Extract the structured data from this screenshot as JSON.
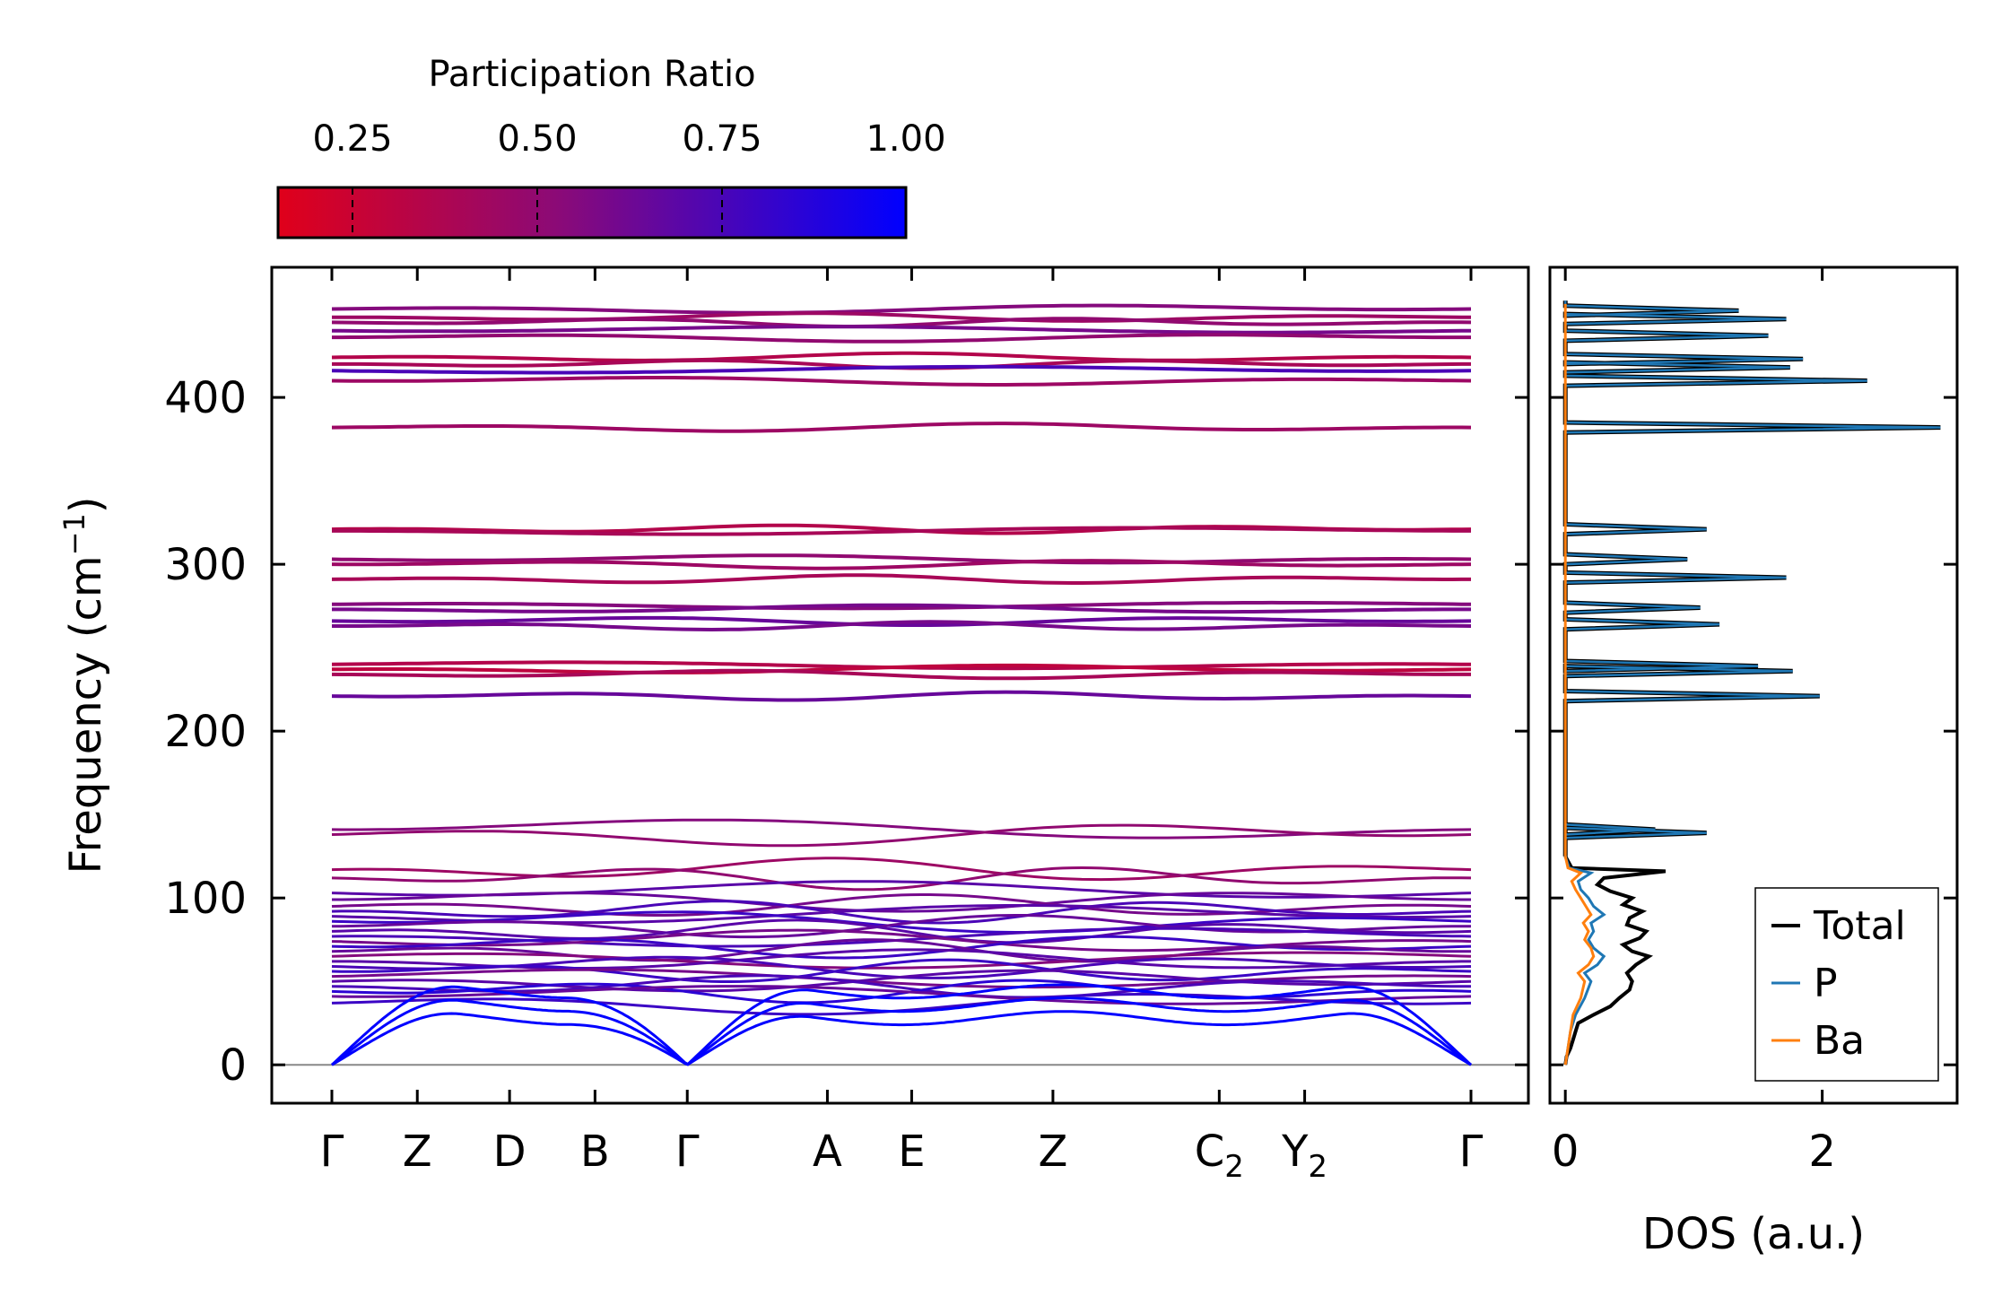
{
  "chart_data": [
    {
      "type": "line",
      "panel": "phonon-band-structure",
      "ylabel_main": "Frequency (cm",
      "ylabel_sup": "−1",
      "ylabel_end": ")",
      "ylim": [
        -23,
        478
      ],
      "yticks": [
        0,
        100,
        200,
        300,
        400
      ],
      "kpoints": [
        {
          "label": "Γ",
          "sub": "",
          "pos": 0.0
        },
        {
          "label": "Z",
          "sub": "",
          "pos": 0.075
        },
        {
          "label": "D",
          "sub": "",
          "pos": 0.156
        },
        {
          "label": "B",
          "sub": "",
          "pos": 0.231
        },
        {
          "label": "Γ",
          "sub": "",
          "pos": 0.312
        },
        {
          "label": "A",
          "sub": "",
          "pos": 0.435
        },
        {
          "label": "E",
          "sub": "",
          "pos": 0.509
        },
        {
          "label": "Z",
          "sub": "",
          "pos": 0.633
        },
        {
          "label": "C",
          "sub": "2",
          "pos": 0.779
        },
        {
          "label": "Y",
          "sub": "2",
          "pos": 0.854
        },
        {
          "label": "Γ",
          "sub": "",
          "pos": 1.0
        }
      ],
      "band_groups": [
        {
          "name": "high-optical",
          "freqs": [
            453,
            448,
            445,
            440,
            436,
            424,
            420,
            416,
            410
          ],
          "participation": [
            0.55,
            0.45,
            0.5,
            0.6,
            0.5,
            0.35,
            0.4,
            0.75,
            0.45
          ]
        },
        {
          "name": "mid-optical",
          "freqs": [
            382,
            321,
            320,
            303,
            300,
            291,
            276,
            273,
            266,
            263,
            240,
            237,
            234,
            221
          ],
          "participation": [
            0.45,
            0.35,
            0.4,
            0.5,
            0.45,
            0.4,
            0.55,
            0.6,
            0.65,
            0.6,
            0.35,
            0.3,
            0.4,
            0.65
          ]
        },
        {
          "name": "low-optical",
          "freqs": [
            141,
            138,
            117,
            112,
            103,
            99,
            95,
            92,
            89,
            86,
            83,
            80,
            77,
            74,
            71,
            68,
            65,
            62,
            59,
            56,
            53,
            50,
            47,
            44,
            41,
            37
          ],
          "participation": [
            0.55,
            0.5,
            0.45,
            0.5,
            0.7,
            0.65,
            0.6,
            0.75,
            0.7,
            0.8,
            0.65,
            0.7,
            0.75,
            0.6,
            0.8,
            0.65,
            0.55,
            0.7,
            0.75,
            0.8,
            0.6,
            0.7,
            0.75,
            0.85,
            0.65,
            0.8
          ]
        },
        {
          "name": "acoustic",
          "freqs": [
            0,
            0,
            0
          ],
          "participation": [
            1.0,
            1.0,
            1.0
          ]
        }
      ],
      "zero_line": 0
    },
    {
      "type": "line",
      "panel": "density-of-states",
      "xlabel": "DOS (a.u.)",
      "xlim": [
        -0.12,
        3.05
      ],
      "xticks": [
        0,
        2
      ],
      "ylim": [
        -23,
        478
      ],
      "series": [
        {
          "name": "Total",
          "color": "#000000"
        },
        {
          "name": "P",
          "color": "#1f77b4"
        },
        {
          "name": "Ba",
          "color": "#ff7f0e"
        }
      ],
      "peaks": [
        {
          "freq": 452,
          "P": 1.35
        },
        {
          "freq": 447,
          "P": 1.72
        },
        {
          "freq": 437,
          "P": 1.58
        },
        {
          "freq": 423,
          "P": 1.85
        },
        {
          "freq": 418,
          "P": 1.75
        },
        {
          "freq": 410,
          "P": 2.35
        },
        {
          "freq": 382,
          "P": 2.92
        },
        {
          "freq": 321,
          "P": 1.1
        },
        {
          "freq": 303,
          "P": 0.95
        },
        {
          "freq": 292,
          "P": 1.72
        },
        {
          "freq": 274,
          "P": 1.05
        },
        {
          "freq": 264,
          "P": 1.2
        },
        {
          "freq": 239,
          "P": 1.5
        },
        {
          "freq": 236,
          "P": 1.77
        },
        {
          "freq": 221,
          "P": 1.98
        },
        {
          "freq": 141,
          "P": 0.7
        },
        {
          "freq": 139,
          "P": 1.1
        }
      ],
      "low_freq_total": [
        [
          0,
          0
        ],
        [
          5,
          0.01
        ],
        [
          10,
          0.04
        ],
        [
          15,
          0.06
        ],
        [
          20,
          0.08
        ],
        [
          25,
          0.1
        ],
        [
          30,
          0.22
        ],
        [
          35,
          0.35
        ],
        [
          40,
          0.42
        ],
        [
          45,
          0.5
        ],
        [
          50,
          0.52
        ],
        [
          55,
          0.48
        ],
        [
          60,
          0.55
        ],
        [
          65,
          0.65
        ],
        [
          68,
          0.52
        ],
        [
          72,
          0.45
        ],
        [
          76,
          0.58
        ],
        [
          80,
          0.63
        ],
        [
          84,
          0.48
        ],
        [
          88,
          0.5
        ],
        [
          92,
          0.6
        ],
        [
          96,
          0.45
        ],
        [
          100,
          0.52
        ],
        [
          104,
          0.35
        ],
        [
          108,
          0.25
        ],
        [
          112,
          0.3
        ],
        [
          116,
          0.78
        ],
        [
          118,
          0.05
        ],
        [
          125,
          0.0
        ]
      ],
      "low_freq_P": [
        [
          0,
          0
        ],
        [
          10,
          0.02
        ],
        [
          20,
          0.04
        ],
        [
          30,
          0.08
        ],
        [
          40,
          0.15
        ],
        [
          50,
          0.2
        ],
        [
          55,
          0.15
        ],
        [
          60,
          0.25
        ],
        [
          65,
          0.3
        ],
        [
          70,
          0.22
        ],
        [
          75,
          0.18
        ],
        [
          80,
          0.22
        ],
        [
          85,
          0.2
        ],
        [
          90,
          0.3
        ],
        [
          95,
          0.22
        ],
        [
          100,
          0.18
        ],
        [
          105,
          0.12
        ],
        [
          110,
          0.1
        ],
        [
          115,
          0.2
        ],
        [
          118,
          0.03
        ],
        [
          125,
          0.0
        ]
      ],
      "low_freq_Ba": [
        [
          0,
          0
        ],
        [
          10,
          0.02
        ],
        [
          20,
          0.04
        ],
        [
          30,
          0.06
        ],
        [
          40,
          0.12
        ],
        [
          50,
          0.15
        ],
        [
          55,
          0.1
        ],
        [
          60,
          0.18
        ],
        [
          65,
          0.22
        ],
        [
          70,
          0.2
        ],
        [
          75,
          0.15
        ],
        [
          80,
          0.18
        ],
        [
          85,
          0.14
        ],
        [
          90,
          0.2
        ],
        [
          95,
          0.16
        ],
        [
          100,
          0.12
        ],
        [
          105,
          0.08
        ],
        [
          110,
          0.05
        ],
        [
          115,
          0.12
        ],
        [
          118,
          0.02
        ],
        [
          125,
          0.0
        ]
      ]
    }
  ],
  "colorbar": {
    "title": "Participation Ratio",
    "ticks": [
      "0.25",
      "0.50",
      "0.75",
      "1.00"
    ],
    "tick_values": [
      0.25,
      0.5,
      0.75,
      1.0
    ],
    "range": [
      0.15,
      1.0
    ],
    "color_low": "#e0001a",
    "color_mid": "#8a0a78",
    "color_high": "#0000ff"
  },
  "legend": {
    "items": [
      {
        "label": "Total",
        "color": "#000000"
      },
      {
        "label": "P",
        "color": "#1f77b4"
      },
      {
        "label": "Ba",
        "color": "#ff7f0e"
      }
    ]
  }
}
